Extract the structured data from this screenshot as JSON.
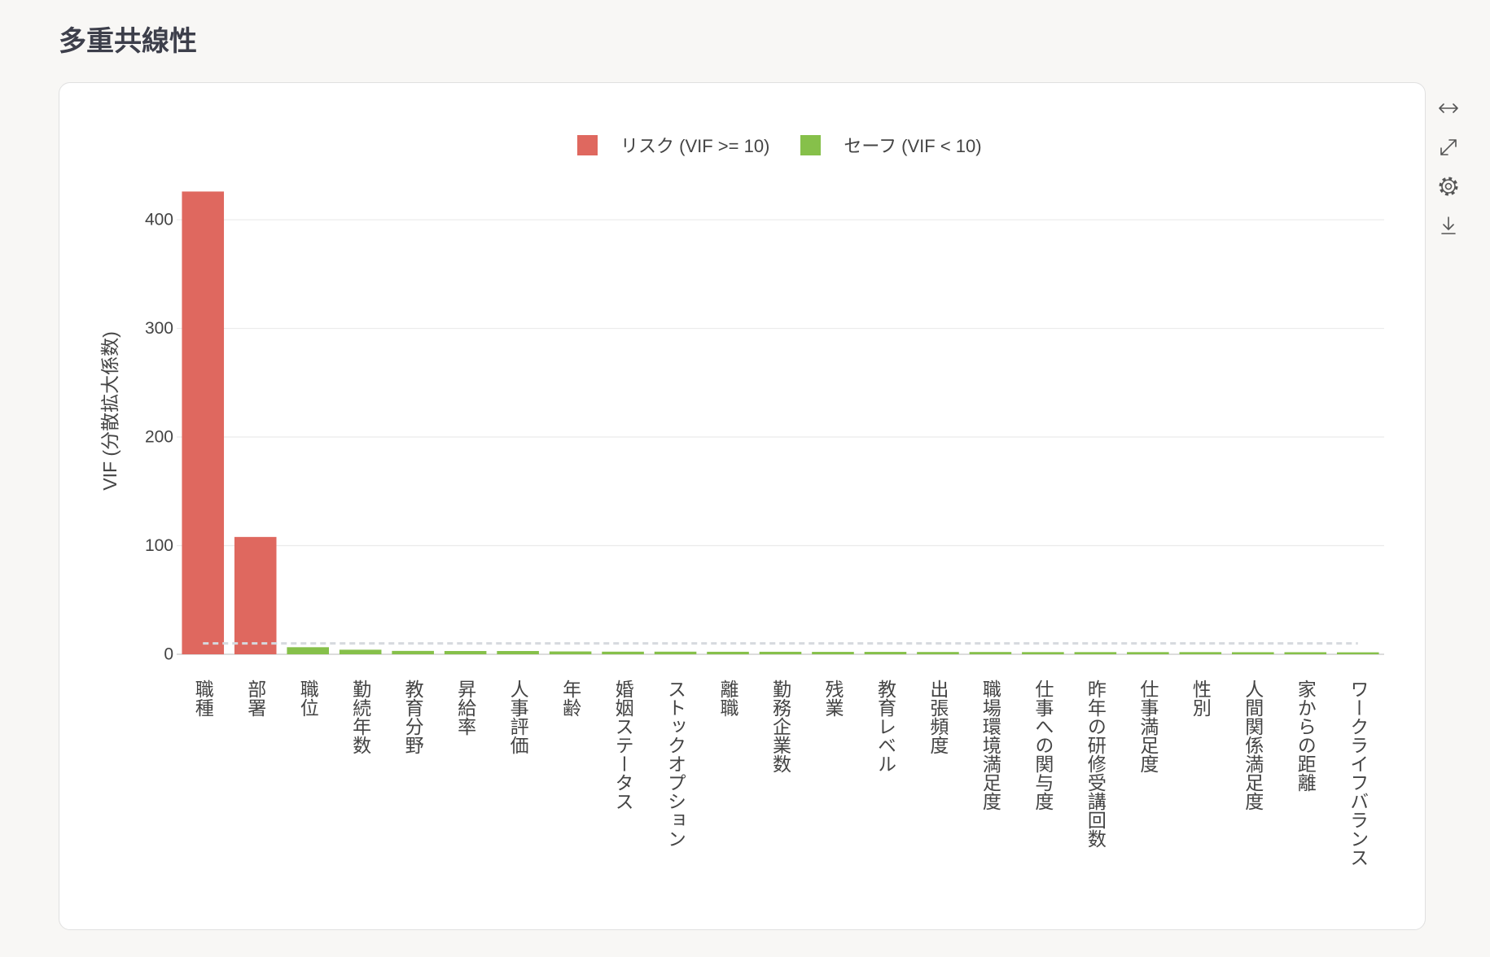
{
  "page": {
    "title": "多重共線性"
  },
  "toolbar": {
    "icons": [
      "fit-width-icon",
      "expand-icon",
      "gear-icon",
      "download-icon"
    ]
  },
  "colors": {
    "risk": "#df685f",
    "safe": "#86c04a",
    "threshold_line": "#d6d9de",
    "grid": "#ebebeb",
    "zero_line": "#d0d0d0",
    "background": "#f8f7f5"
  },
  "chart_data": {
    "type": "bar",
    "categories": [
      "職種",
      "部署",
      "職位",
      "勤続年数",
      "教育分野",
      "昇給率",
      "人事評価",
      "年齢",
      "婚姻ステータス",
      "ストックオプション",
      "離職",
      "勤務企業数",
      "残業",
      "教育レベル",
      "出張頻度",
      "職場環境満足度",
      "仕事への関与度",
      "昨年の研修受講回数",
      "仕事満足度",
      "性別",
      "人間関係満足度",
      "家からの距離",
      "ワークライフバランス"
    ],
    "values": [
      426,
      108,
      6.5,
      4.2,
      3.1,
      3.0,
      3.0,
      2.6,
      2.4,
      2.4,
      2.3,
      2.3,
      2.2,
      2.2,
      2.1,
      2.1,
      2.0,
      2.0,
      2.0,
      2.0,
      1.9,
      1.9,
      1.8
    ],
    "status": [
      "risk",
      "risk",
      "safe",
      "safe",
      "safe",
      "safe",
      "safe",
      "safe",
      "safe",
      "safe",
      "safe",
      "safe",
      "safe",
      "safe",
      "safe",
      "safe",
      "safe",
      "safe",
      "safe",
      "safe",
      "safe",
      "safe",
      "safe"
    ],
    "legend": [
      {
        "name": "リスク (VIF >= 10)",
        "color": "#df685f"
      },
      {
        "name": "セーフ (VIF < 10)",
        "color": "#86c04a"
      }
    ],
    "legend_position": "top-center",
    "xlabel": "",
    "ylabel": "VIF (分散拡大係数)",
    "ylim": [
      0,
      448
    ],
    "yticks": [
      0,
      100,
      200,
      300,
      400
    ],
    "threshold": 10,
    "grid": true
  }
}
